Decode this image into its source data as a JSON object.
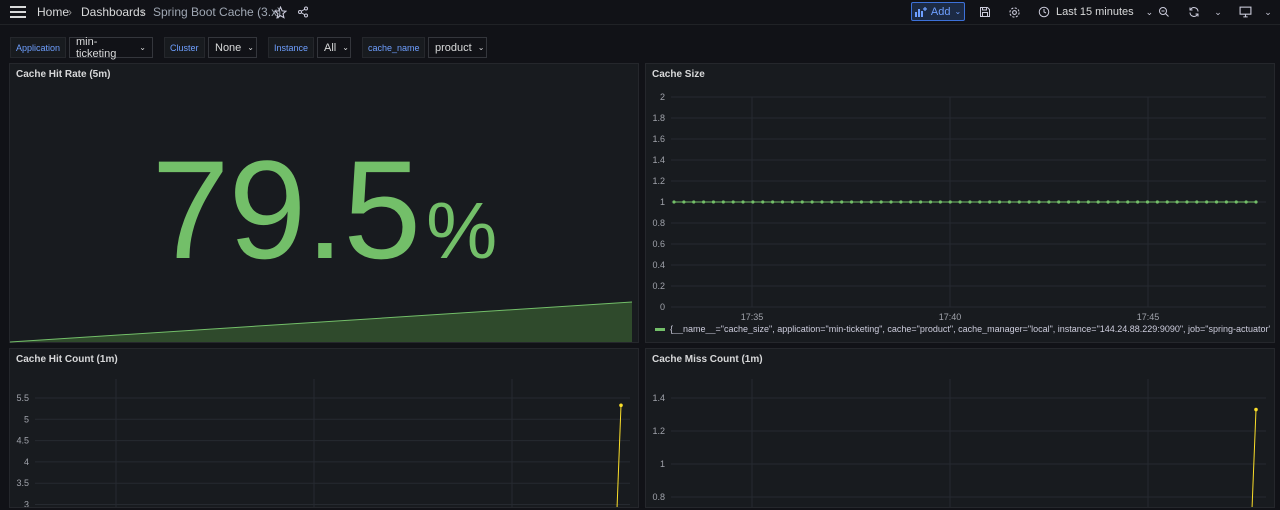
{
  "breadcrumb": {
    "home": "Home",
    "dashboards": "Dashboards",
    "current": "Spring Boot Cache (3.x)"
  },
  "toolbar": {
    "add_label": "Add",
    "time_range": "Last 15 minutes"
  },
  "variables": [
    {
      "label": "Application",
      "value": "min-ticketing"
    },
    {
      "label": "Cluster",
      "value": "None"
    },
    {
      "label": "Instance",
      "value": "All"
    },
    {
      "label": "cache_name",
      "value": "product"
    }
  ],
  "panels": {
    "hit_rate": {
      "title": "Cache Hit Rate (5m)",
      "value": "79.5",
      "unit": "%"
    },
    "cache_size": {
      "title": "Cache Size",
      "legend": "{__name__=\"cache_size\", application=\"min-ticketing\", cache=\"product\", cache_manager=\"local\", instance=\"144.24.88.229:9090\", job=\"spring-actuator\","
    },
    "hit_count": {
      "title": "Cache Hit Count (1m)"
    },
    "miss_count": {
      "title": "Cache Miss Count (1m)"
    }
  },
  "colors": {
    "value_green": "#73bf69",
    "series_yellow": "#fade2a",
    "accent_blue": "#6e9fff"
  },
  "chart_data": [
    {
      "type": "line",
      "title": "Cache Size",
      "x_ticks": [
        "17:35",
        "17:40",
        "17:45"
      ],
      "y_ticks": [
        "0",
        "0.2",
        "0.4",
        "0.6",
        "0.8",
        "1",
        "1.2",
        "1.4",
        "1.6",
        "1.8",
        "2"
      ],
      "ylim": [
        0,
        2
      ],
      "series": [
        {
          "values": [
            1,
            1,
            1,
            1,
            1,
            1,
            1,
            1,
            1,
            1,
            1,
            1,
            1,
            1,
            1,
            1,
            1,
            1,
            1,
            1,
            1,
            1,
            1,
            1,
            1,
            1,
            1,
            1,
            1,
            1,
            1,
            1,
            1,
            1,
            1,
            1,
            1,
            1,
            1,
            1,
            1,
            1,
            1,
            1,
            1,
            1,
            1,
            1,
            1,
            1,
            1,
            1,
            1,
            1,
            1,
            1,
            1,
            1,
            1,
            1
          ]
        }
      ]
    },
    {
      "type": "line",
      "title": "Cache Hit Count (1m)",
      "y_ticks": [
        "3",
        "3.5",
        "4",
        "4.5",
        "5",
        "5.5"
      ],
      "series": [
        {
          "values": [
            5.33
          ]
        }
      ]
    },
    {
      "type": "line",
      "title": "Cache Miss Count (1m)",
      "y_ticks": [
        "0.8",
        "1",
        "1.2",
        "1.4"
      ],
      "series": [
        {
          "values": [
            1.33
          ]
        }
      ]
    }
  ]
}
